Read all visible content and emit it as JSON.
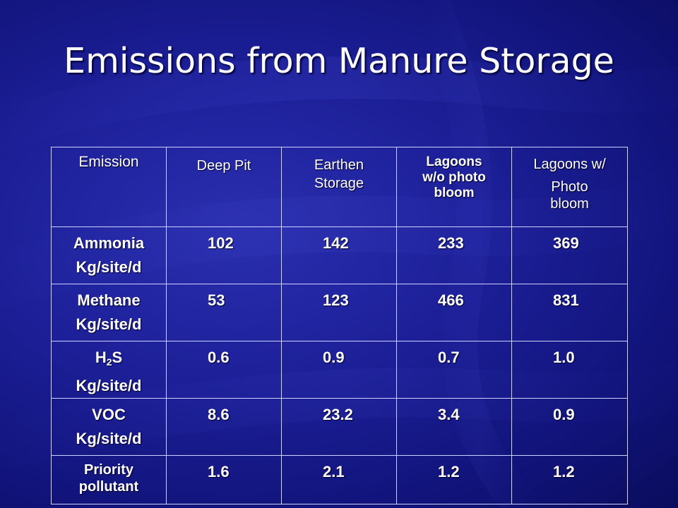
{
  "slide": {
    "title": "Emissions from Manure Storage"
  },
  "table": {
    "headers": {
      "emission": "Emission",
      "deep_pit": "Deep Pit",
      "earthen_storage_1": "Earthen",
      "earthen_storage_2": "Storage",
      "lagoons_wo_1": "Lagoons",
      "lagoons_wo_2": "w/o photo",
      "lagoons_wo_3": "bloom",
      "lagoons_w_1": "Lagoons w/",
      "lagoons_w_2": "Photo",
      "lagoons_w_3": "bloom"
    },
    "rows": [
      {
        "name": "Ammonia",
        "unit": "Kg/site/d",
        "values": [
          "102",
          "142",
          "233",
          "369"
        ]
      },
      {
        "name": "Methane",
        "unit": "Kg/site/d",
        "values": [
          "53",
          "123",
          "466",
          "831"
        ]
      },
      {
        "name_main": "H",
        "name_sub": "2",
        "name_tail": "S",
        "unit": "Kg/site/d",
        "values": [
          "0.6",
          "0.9",
          "0.7",
          "1.0"
        ]
      },
      {
        "name": "VOC",
        "unit": "Kg/site/d",
        "values": [
          "8.6",
          "23.2",
          "3.4",
          "0.9"
        ]
      },
      {
        "name_1": "Priority",
        "name_2": "pollutant",
        "values": [
          "1.6",
          "2.1",
          "1.2",
          "1.2"
        ]
      }
    ]
  }
}
